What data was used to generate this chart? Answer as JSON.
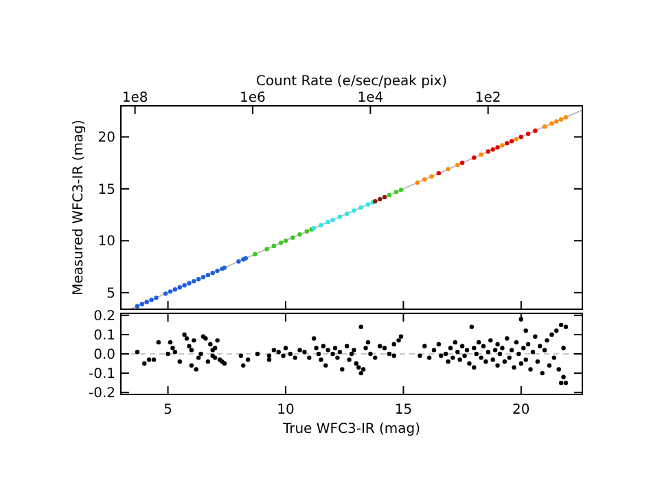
{
  "chart_data": [
    {
      "type": "scatter",
      "ylabel": "Measured WFC3-IR (mag)",
      "x2label": "Count Rate (e/sec/peak pix)",
      "xlim": [
        3,
        22.6
      ],
      "xticks": [
        {
          "value": 5,
          "label": null
        },
        {
          "value": 10,
          "label": null
        },
        {
          "value": 15,
          "label": null
        },
        {
          "value": 20,
          "label": null
        }
      ],
      "ylim": [
        3.4,
        23
      ],
      "yticks": [
        5,
        10,
        15,
        20
      ],
      "x2lim": [
        174000000,
        2.5
      ],
      "x2ticks": [
        {
          "value": 100000000,
          "label": "1e8"
        },
        {
          "value": 1000000,
          "label": "1e6"
        },
        {
          "value": 10000,
          "label": "1e4"
        },
        {
          "value": 100,
          "label": "1e2"
        }
      ],
      "log": "x2",
      "tick_labels": "y",
      "marker": "circle",
      "series": [
        {
          "type": "line",
          "marker": "none",
          "color": "#b4b4b4",
          "x": [
            3.4,
            22.6
          ],
          "values": [
            3.4,
            22.6
          ]
        },
        {
          "color": "#1f5fe0",
          "x": [
            3.7,
            3.9,
            4.1,
            4.3,
            4.5,
            4.9,
            5.1,
            5.3,
            5.5,
            5.7,
            5.9,
            6.1,
            6.3,
            6.5,
            6.7,
            6.9,
            7.1,
            7.3,
            7.4,
            8.0,
            8.2,
            8.3
          ],
          "values": [
            3.7,
            3.9,
            4.1,
            4.3,
            4.5,
            4.9,
            5.1,
            5.3,
            5.5,
            5.7,
            5.9,
            6.1,
            6.3,
            6.5,
            6.7,
            6.9,
            7.1,
            7.3,
            7.4,
            8.0,
            8.2,
            8.3
          ]
        },
        {
          "color": "#3cc81e",
          "x": [
            8.7,
            9.2,
            9.5,
            9.8,
            10.0,
            10.3,
            10.6,
            10.9,
            11.1,
            14.4,
            14.7,
            14.9
          ],
          "values": [
            8.7,
            9.2,
            9.5,
            9.8,
            10.0,
            10.3,
            10.6,
            10.9,
            11.1,
            14.4,
            14.7,
            14.9
          ]
        },
        {
          "color": "#2de6e6",
          "x": [
            11.2,
            11.5,
            11.8,
            12.0,
            12.3,
            12.6,
            12.9,
            13.2,
            13.5,
            13.7
          ],
          "values": [
            11.2,
            11.5,
            11.8,
            12.0,
            12.3,
            12.6,
            12.9,
            13.2,
            13.5,
            13.7
          ]
        },
        {
          "color": "#8b1a00",
          "x": [
            13.8,
            14.0,
            14.2
          ],
          "values": [
            13.8,
            14.0,
            14.2
          ]
        },
        {
          "color": "#ff8c00",
          "x": [
            15.6,
            15.9,
            16.2,
            16.9,
            17.3,
            18.3,
            19.2,
            19.8,
            21.0,
            21.3,
            21.5,
            21.7,
            21.9
          ],
          "values": [
            15.6,
            15.9,
            16.2,
            16.9,
            17.3,
            18.3,
            19.2,
            19.8,
            21.0,
            21.3,
            21.5,
            21.7,
            21.9
          ]
        },
        {
          "color": "#e00000",
          "x": [
            16.5,
            17.5,
            18.0,
            18.6,
            18.8,
            19.0,
            19.4,
            19.6,
            20.0,
            20.3,
            20.6
          ],
          "values": [
            16.5,
            17.5,
            18.0,
            18.6,
            18.8,
            19.0,
            19.4,
            19.6,
            20.0,
            20.3,
            20.6
          ]
        }
      ]
    },
    {
      "type": "scatter",
      "xlabel": "True WFC3-IR (mag)",
      "xlim": [
        3,
        22.6
      ],
      "xticks": [
        5,
        10,
        15,
        20
      ],
      "ylim": [
        -0.21,
        0.21
      ],
      "yticks": [
        0.2,
        0.1,
        {
          "value": 0,
          "label": "0.0"
        },
        -0.1,
        -0.2
      ],
      "marker": "circle",
      "ref_lines": [
        {
          "axis": "y",
          "value": 0,
          "color": "#b4b4b4",
          "line_style": "dashed"
        }
      ],
      "series": [
        {
          "color": "#000000",
          "x": [
            3.7,
            4.0,
            4.2,
            4.4,
            4.6,
            5.0,
            5.1,
            5.2,
            5.3,
            5.5,
            5.7,
            5.8,
            5.9,
            6.0,
            6.0,
            6.1,
            6.2,
            6.3,
            6.4,
            6.5,
            6.6,
            6.7,
            6.8,
            6.9,
            6.9,
            7.0,
            7.0,
            7.1,
            7.2,
            7.3,
            7.4,
            8.1,
            8.2,
            8.4,
            8.8,
            9.3,
            9.3,
            9.5,
            9.7,
            9.9,
            10.0,
            10.2,
            10.4,
            10.6,
            10.8,
            11.0,
            11.2,
            11.3,
            11.4,
            11.5,
            11.6,
            11.7,
            11.8,
            12.0,
            12.1,
            12.2,
            12.3,
            12.4,
            12.6,
            12.7,
            12.8,
            12.9,
            13.0,
            13.1,
            13.2,
            13.2,
            13.3,
            13.4,
            13.5,
            13.6,
            13.8,
            14.0,
            14.2,
            14.4,
            14.6,
            14.8,
            14.9,
            14.6,
            15.7,
            15.9,
            16.1,
            16.3,
            16.5,
            16.6,
            16.8,
            16.9,
            17.0,
            17.1,
            17.2,
            17.3,
            17.4,
            17.5,
            17.6,
            17.7,
            17.8,
            17.9,
            18.0,
            18.0,
            18.1,
            18.2,
            18.3,
            18.4,
            18.5,
            18.6,
            18.7,
            18.8,
            18.9,
            19.0,
            19.0,
            19.1,
            19.2,
            19.3,
            19.4,
            19.5,
            19.6,
            19.7,
            19.8,
            19.9,
            20.0,
            20.0,
            20.1,
            20.2,
            20.2,
            20.3,
            20.4,
            20.5,
            20.6,
            20.7,
            20.8,
            20.9,
            21.0,
            21.1,
            21.2,
            21.3,
            21.4,
            21.5,
            21.6,
            21.7,
            21.8,
            21.8,
            21.9,
            21.9,
            21.7
          ],
          "values": [
            0.01,
            -0.05,
            -0.03,
            -0.03,
            0.06,
            0.0,
            0.06,
            0.03,
            0.01,
            -0.04,
            0.1,
            0.08,
            0.04,
            0.02,
            -0.06,
            0.07,
            -0.08,
            -0.02,
            0.0,
            0.09,
            0.08,
            -0.04,
            0.05,
            0.02,
            -0.01,
            0.03,
            -0.02,
            0.07,
            -0.03,
            -0.04,
            -0.05,
            -0.01,
            -0.06,
            -0.03,
            0.0,
            -0.01,
            -0.03,
            0.02,
            0.01,
            -0.01,
            0.03,
            0.0,
            -0.02,
            0.02,
            0.01,
            -0.02,
            0.08,
            0.03,
            0.0,
            -0.03,
            0.04,
            -0.06,
            0.02,
            0.0,
            0.03,
            -0.02,
            0.01,
            -0.08,
            0.04,
            -0.03,
            0.0,
            0.02,
            -0.05,
            -0.07,
            0.14,
            -0.1,
            -0.08,
            0.03,
            0.06,
            0.0,
            -0.02,
            0.04,
            0.03,
            0.0,
            0.05,
            0.07,
            0.09,
            -0.01,
            -0.01,
            0.04,
            -0.02,
            0.02,
            0.05,
            -0.01,
            0.0,
            -0.04,
            0.03,
            -0.02,
            0.06,
            0.01,
            -0.03,
            0.04,
            -0.01,
            0.02,
            -0.05,
            0.14,
            0.03,
            -0.07,
            0.0,
            0.06,
            -0.02,
            0.04,
            -0.04,
            0.01,
            0.07,
            -0.03,
            0.02,
            -0.06,
            0.05,
            0.0,
            0.03,
            -0.04,
            0.08,
            -0.02,
            0.02,
            -0.07,
            0.06,
            0.0,
            0.18,
            -0.05,
            0.03,
            0.12,
            -0.03,
            0.05,
            -0.08,
            0.01,
            0.09,
            -0.04,
            0.04,
            -0.1,
            0.02,
            0.07,
            -0.06,
            0.1,
            -0.02,
            0.12,
            -0.08,
            0.15,
            -0.12,
            0.03,
            0.14,
            -0.15,
            -0.15
          ]
        }
      ]
    }
  ]
}
